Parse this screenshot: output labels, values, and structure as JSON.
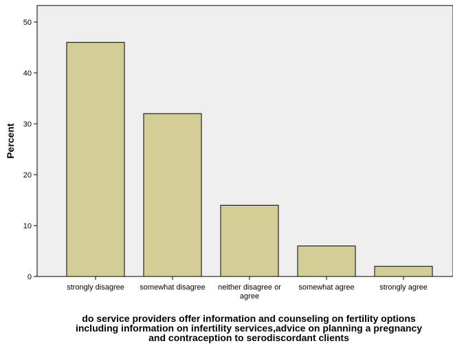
{
  "chart_data": {
    "type": "bar",
    "categories": [
      [
        "strongly disagree"
      ],
      [
        "somewhat disagree"
      ],
      [
        "neither disagree or",
        "agree"
      ],
      [
        "somewhat agree"
      ],
      [
        "strongly agree"
      ]
    ],
    "values": [
      46,
      32,
      14,
      6,
      2
    ],
    "ylabel": "Percent",
    "xlabel": [
      "do service providers offer information and counseling on fertility options",
      "including information on infertility services,advice on planning a pregnancy",
      "and contraception to serodiscordant clients"
    ],
    "ylim": [
      0,
      52
    ],
    "yticks": [
      0,
      10,
      20,
      30,
      40,
      50
    ],
    "grid": false,
    "colors": {
      "bar_fill": "#d3ce96",
      "bar_stroke": "#000000",
      "plot_bg": "#efefef",
      "axis": "#000000"
    }
  }
}
